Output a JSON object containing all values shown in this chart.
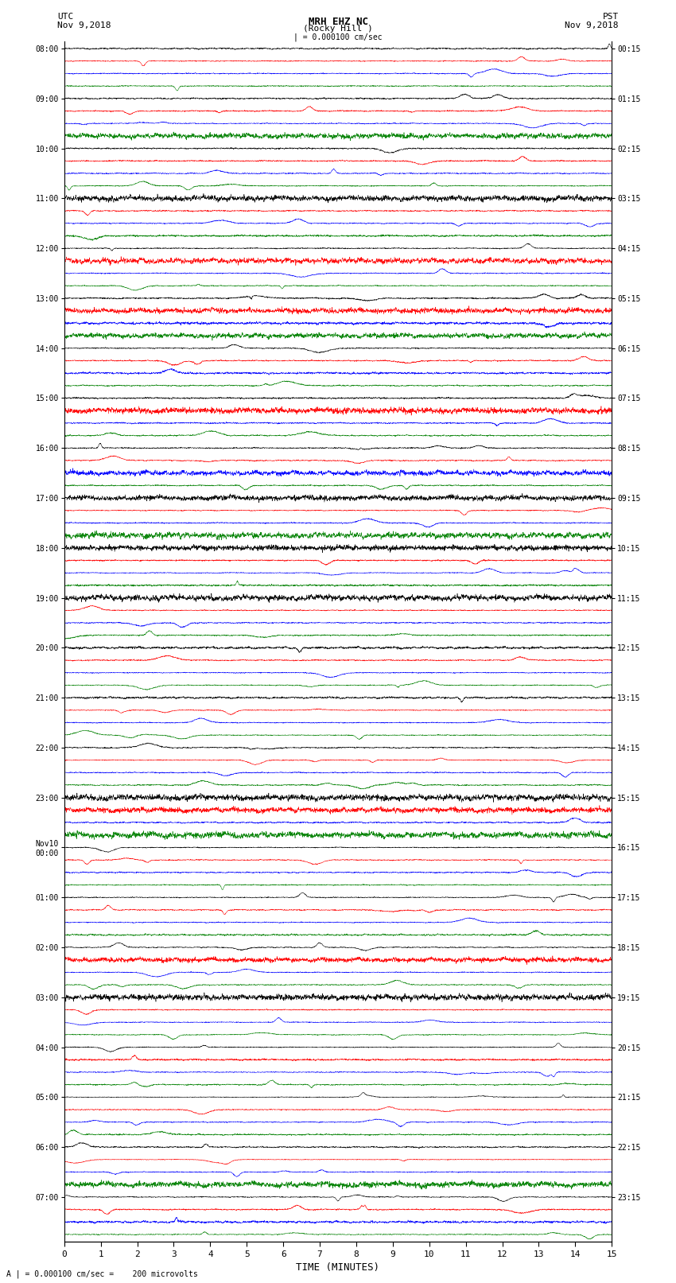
{
  "title_line1": "MRH EHZ NC",
  "title_line2": "(Rocky Hill )",
  "title_scale": "| = 0.000100 cm/sec",
  "left_label_line1": "UTC",
  "left_label_line2": "Nov 9,2018",
  "right_label_line1": "PST",
  "right_label_line2": "Nov 9,2018",
  "xlabel": "TIME (MINUTES)",
  "bottom_note": "A | = 0.000100 cm/sec =    200 microvolts",
  "utc_times": [
    "08:00",
    "09:00",
    "10:00",
    "11:00",
    "12:00",
    "13:00",
    "14:00",
    "15:00",
    "16:00",
    "17:00",
    "18:00",
    "19:00",
    "20:00",
    "21:00",
    "22:00",
    "23:00",
    "Nov10\n00:00",
    "01:00",
    "02:00",
    "03:00",
    "04:00",
    "05:00",
    "06:00",
    "07:00"
  ],
  "pst_times": [
    "00:15",
    "01:15",
    "02:15",
    "03:15",
    "04:15",
    "05:15",
    "06:15",
    "07:15",
    "08:15",
    "09:15",
    "10:15",
    "11:15",
    "12:15",
    "13:15",
    "14:15",
    "15:15",
    "16:15",
    "17:15",
    "18:15",
    "19:15",
    "20:15",
    "21:15",
    "22:15",
    "23:15"
  ],
  "n_rows": 96,
  "n_time_labels": 24,
  "colors": [
    "black",
    "red",
    "blue",
    "green"
  ],
  "x_ticks": [
    0,
    1,
    2,
    3,
    4,
    5,
    6,
    7,
    8,
    9,
    10,
    11,
    12,
    13,
    14,
    15
  ],
  "x_lim": [
    0,
    15
  ],
  "bg_color": "white",
  "trace_amplitude": 0.38,
  "seed": 42
}
